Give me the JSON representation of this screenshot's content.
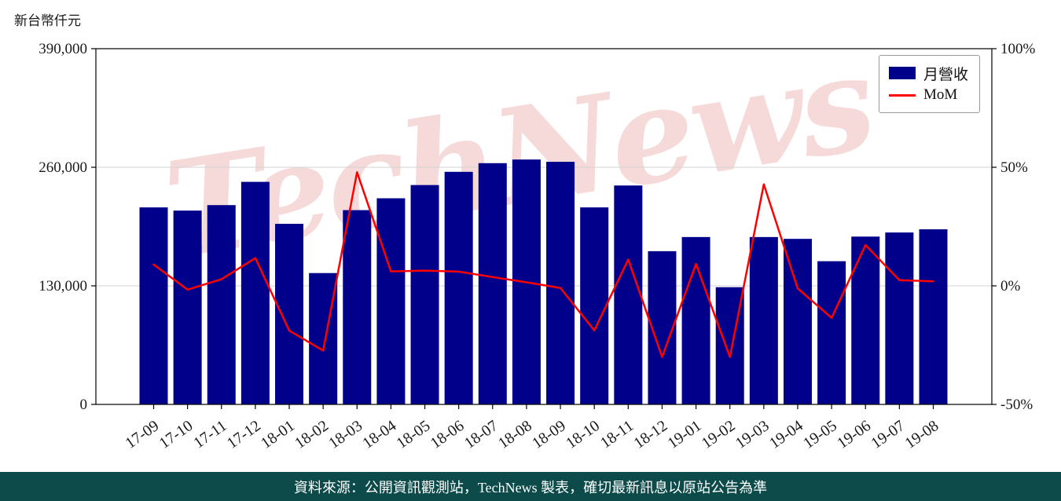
{
  "page": {
    "unit_label": "新台幣仟元",
    "watermark": "TechNews",
    "footer_text": "資料來源：公開資訊觀測站，TechNews 製表，確切最新訊息以原站公告為準"
  },
  "colors": {
    "bar": "#00008B",
    "line": "#FF0000",
    "grid": "#d3d3d3",
    "axis": "#000000",
    "tick_text": "#1a1a1a",
    "watermark": "#f0bcbc",
    "footer_bg": "#0d4a4a",
    "footer_text": "#ffffff"
  },
  "legend": {
    "bar_label": "月營收",
    "line_label": "MoM"
  },
  "chart_data": {
    "type": "bar",
    "title": "",
    "xlabel": "",
    "ylabel": "新台幣仟元",
    "categories": [
      "17-09",
      "17-10",
      "17-11",
      "17-12",
      "18-01",
      "18-02",
      "18-03",
      "18-04",
      "18-05",
      "18-06",
      "18-07",
      "18-08",
      "18-09",
      "18-10",
      "18-11",
      "18-12",
      "19-01",
      "19-02",
      "19-03",
      "19-04",
      "19-05",
      "19-06",
      "19-07",
      "19-08"
    ],
    "series": [
      {
        "name": "月營收",
        "type": "bar",
        "axis": "left",
        "unit": "新台幣仟元",
        "values": [
          216000,
          212500,
          218500,
          244000,
          198000,
          144000,
          213000,
          226000,
          240500,
          255000,
          264500,
          268500,
          266000,
          216000,
          240000,
          168000,
          183500,
          128500,
          183500,
          181500,
          157000,
          184000,
          188500,
          192000
        ]
      },
      {
        "name": "MoM",
        "type": "line",
        "axis": "right",
        "unit": "%",
        "values": [
          9.0,
          -1.6,
          2.8,
          11.7,
          -18.9,
          -27.3,
          47.9,
          6.1,
          6.4,
          6.0,
          3.7,
          1.5,
          -0.9,
          -18.8,
          11.1,
          -30.0,
          9.2,
          -30.0,
          42.8,
          -1.1,
          -13.5,
          17.2,
          2.4,
          1.9
        ]
      }
    ],
    "left_axis": {
      "min": 0,
      "max": 390000,
      "ticks": [
        390000,
        260000,
        130000,
        0
      ],
      "tick_labels": [
        "390,000",
        "260,000",
        "130,000",
        "0"
      ]
    },
    "right_axis": {
      "min": -50,
      "max": 100,
      "ticks": [
        100,
        50,
        0,
        -50
      ],
      "tick_labels": [
        "100%",
        "50%",
        "0%",
        "-50%"
      ]
    },
    "grid_values": [
      260000,
      130000
    ],
    "legend_position": "top-right",
    "grid": true
  }
}
